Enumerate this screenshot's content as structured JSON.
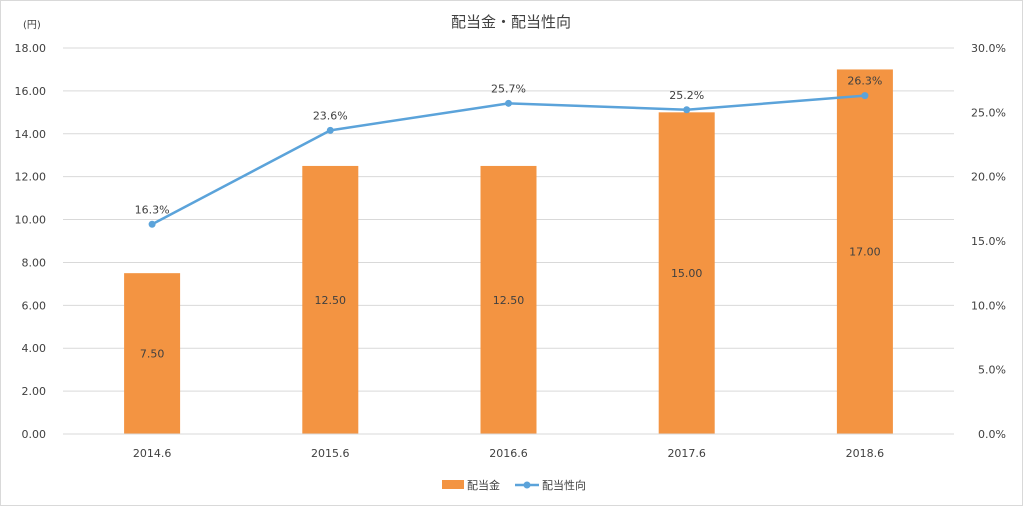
{
  "chart_data": {
    "type": "bar",
    "title": "配当金・配当性向",
    "y_unit_label": "(円)",
    "categories": [
      "2014.6",
      "2015.6",
      "2016.6",
      "2017.6",
      "2018.6"
    ],
    "series": [
      {
        "name": "配当金",
        "type": "bar",
        "axis": "left",
        "values": [
          7.5,
          12.5,
          12.5,
          15.0,
          17.0
        ],
        "value_labels": [
          "7.50",
          "12.50",
          "12.50",
          "15.00",
          "17.00"
        ],
        "color": "#F39442"
      },
      {
        "name": "配当性向",
        "type": "line",
        "axis": "right",
        "values": [
          16.3,
          23.6,
          25.7,
          25.2,
          26.3
        ],
        "value_labels": [
          "16.3%",
          "23.6%",
          "25.7%",
          "25.2%",
          "26.3%"
        ],
        "color": "#5BA3DA"
      }
    ],
    "y_left": {
      "min": 0,
      "max": 18,
      "step": 2,
      "tick_labels": [
        "0.00",
        "2.00",
        "4.00",
        "6.00",
        "8.00",
        "10.00",
        "12.00",
        "14.00",
        "16.00",
        "18.00"
      ]
    },
    "y_right": {
      "min": 0,
      "max": 30,
      "step": 5,
      "tick_labels": [
        "0.0%",
        "5.0%",
        "10.0%",
        "15.0%",
        "20.0%",
        "25.0%",
        "30.0%"
      ]
    },
    "grid": true,
    "grid_color": "#d9d9d9",
    "legend_position": "bottom"
  }
}
